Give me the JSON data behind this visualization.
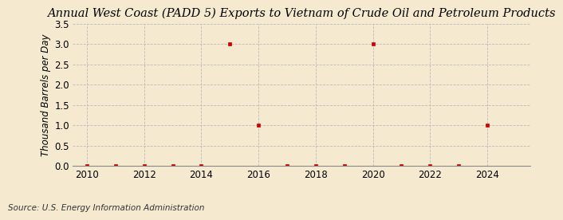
{
  "title": "Annual West Coast (PADD 5) Exports to Vietnam of Crude Oil and Petroleum Products",
  "ylabel": "Thousand Barrels per Day",
  "source": "Source: U.S. Energy Information Administration",
  "background_color": "#f5ead0",
  "years": [
    2010,
    2011,
    2012,
    2013,
    2014,
    2015,
    2016,
    2017,
    2018,
    2019,
    2020,
    2021,
    2022,
    2023,
    2024
  ],
  "values": [
    0.0,
    0.0,
    0.0,
    0.0,
    0.0,
    3.0,
    1.0,
    0.0,
    0.0,
    0.0,
    3.0,
    0.0,
    0.0,
    0.0,
    1.0
  ],
  "marker_color": "#cc0000",
  "marker_size": 3.5,
  "xlim": [
    2009.5,
    2025.5
  ],
  "ylim": [
    0.0,
    3.5
  ],
  "yticks": [
    0.0,
    0.5,
    1.0,
    1.5,
    2.0,
    2.5,
    3.0,
    3.5
  ],
  "xticks": [
    2010,
    2012,
    2014,
    2016,
    2018,
    2020,
    2022,
    2024
  ],
  "grid_color": "#bbbbbb",
  "title_fontsize": 10.5,
  "label_fontsize": 8.5,
  "tick_fontsize": 8.5,
  "source_fontsize": 7.5
}
